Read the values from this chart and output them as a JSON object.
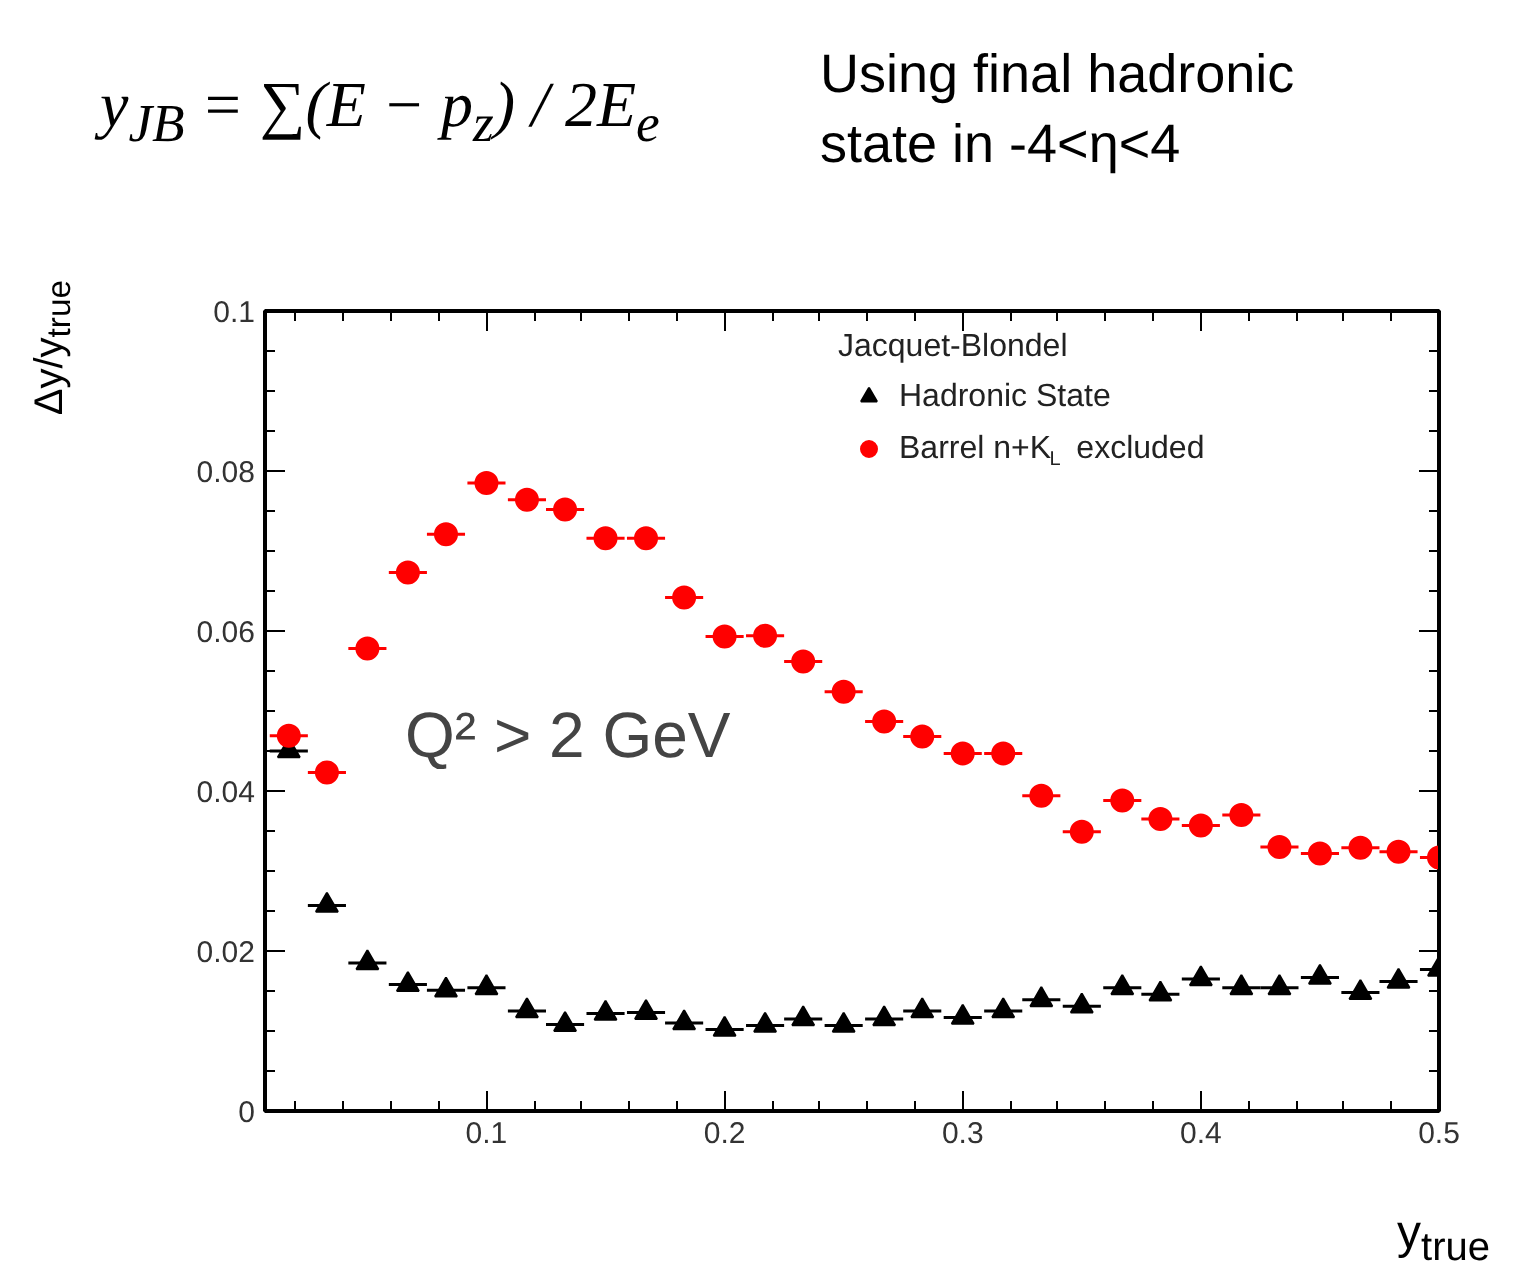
{
  "chart_data": {
    "type": "scatter",
    "annotations": [
      "y$_{JB}$ = ∑(E − p$_{z}$) / 2E$_{e}$",
      "Using final hadronic state in -4<η<4",
      "Q² > 2 GeV"
    ],
    "xlabel": "y$_{true}$",
    "ylabel": "Δy/y$_{true}$",
    "legend_title": "Jacquet-Blondel",
    "x": [
      0.017,
      0.033,
      0.05,
      0.067,
      0.083,
      0.1,
      0.117,
      0.133,
      0.15,
      0.167,
      0.183,
      0.2,
      0.217,
      0.233,
      0.25,
      0.267,
      0.283,
      0.3,
      0.317,
      0.333,
      0.35,
      0.367,
      0.383,
      0.4,
      0.417,
      0.433,
      0.45,
      0.467,
      0.483,
      0.5
    ],
    "series": [
      {
        "name": "Hadronic State",
        "color": "#000000",
        "marker": "triangle",
        "xerrors": [
          0.008,
          0.008,
          0.008,
          0.008,
          0.008,
          0.008,
          0.008,
          0.008,
          0.008,
          0.008,
          0.008,
          0.008,
          0.008,
          0.008,
          0.008,
          0.008,
          0.008,
          0.008,
          0.008,
          0.008,
          0.008,
          0.008,
          0.008,
          0.008,
          0.008,
          0.008,
          0.008,
          0.008,
          0.008,
          0.008
        ],
        "values": [
          0.045,
          0.0257,
          0.0185,
          0.0158,
          0.0151,
          0.0154,
          0.0125,
          0.0108,
          0.0122,
          0.0123,
          0.011,
          0.0102,
          0.0107,
          0.0115,
          0.0107,
          0.0115,
          0.0125,
          0.0117,
          0.0125,
          0.0139,
          0.0131,
          0.0154,
          0.0146,
          0.0165,
          0.0154,
          0.0154,
          0.0167,
          0.0148,
          0.0162,
          0.0177
        ]
      },
      {
        "name": "Barrel n+K$_{L}$ excluded",
        "color": "#ff0000",
        "marker": "circle",
        "xerrors": [
          0.008,
          0.008,
          0.008,
          0.008,
          0.008,
          0.008,
          0.008,
          0.008,
          0.008,
          0.008,
          0.008,
          0.008,
          0.008,
          0.008,
          0.008,
          0.008,
          0.008,
          0.008,
          0.008,
          0.008,
          0.008,
          0.008,
          0.008,
          0.008,
          0.008,
          0.008,
          0.008,
          0.008,
          0.008,
          0.008
        ],
        "errors": [
          0.0012,
          0.0012,
          0.0012,
          0.0012,
          0.0012,
          0.0012,
          0.0012,
          0.0012,
          0.0012,
          0.0012,
          0.0012,
          0.0012,
          0.0012,
          0.0012,
          0.0012,
          0.0012,
          0.0012,
          0.0012,
          0.0012,
          0.0012,
          0.0012,
          0.0012,
          0.0012,
          0.0012,
          0.0012,
          0.0012,
          0.0012,
          0.0012,
          0.0012,
          0.0012
        ],
        "values": [
          0.0469,
          0.0423,
          0.0578,
          0.0673,
          0.0721,
          0.0785,
          0.0764,
          0.0752,
          0.0716,
          0.0716,
          0.0642,
          0.0593,
          0.0594,
          0.0562,
          0.0524,
          0.0487,
          0.0468,
          0.0447,
          0.0447,
          0.0394,
          0.0349,
          0.0388,
          0.0365,
          0.0357,
          0.037,
          0.033,
          0.0322,
          0.0329,
          0.0324,
          0.0317
        ]
      }
    ],
    "xlim": [
      0.007,
      0.5
    ],
    "ylim": [
      0,
      0.1
    ],
    "xticks": [
      0.1,
      0.2,
      0.3,
      0.4,
      0.5
    ],
    "yticks": [
      0,
      0.02,
      0.04,
      0.06,
      0.08,
      0.1
    ],
    "grid": false,
    "legend": "top right"
  }
}
